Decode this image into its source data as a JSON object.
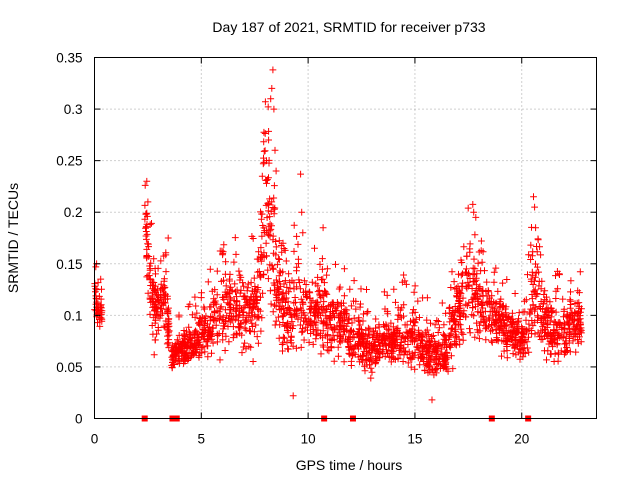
{
  "chart_data": {
    "type": "scatter",
    "title": "Day 187 of 2021, SRMTID for receiver p733",
    "xlabel": "GPS time / hours",
    "ylabel": "SRMTID / TECUs",
    "xlim": [
      0,
      23.5
    ],
    "ylim": [
      0,
      0.35
    ],
    "x_ticks": [
      0,
      5,
      10,
      15,
      20
    ],
    "x_tick_labels": [
      "0",
      "5",
      "10",
      "15",
      "20"
    ],
    "y_ticks": [
      0,
      0.05,
      0.1,
      0.15,
      0.2,
      0.25,
      0.3,
      0.35
    ],
    "y_tick_labels": [
      "0",
      "0.05",
      "0.1",
      "0.15",
      "0.2",
      "0.25",
      "0.3",
      "0.35"
    ],
    "grid": true,
    "marker": "+",
    "marker_color": "#ff0000",
    "baseline_markers_at_zero_hours": [
      2.35,
      3.65,
      3.85,
      10.75,
      12.1,
      18.6,
      20.3
    ],
    "envelope": [
      [
        0.0,
        0.09,
        0.14
      ],
      [
        0.25,
        0.09,
        0.12
      ],
      [
        2.4,
        0.15,
        0.23
      ],
      [
        2.6,
        0.1,
        0.17
      ],
      [
        2.8,
        0.07,
        0.15
      ],
      [
        3.0,
        0.08,
        0.13
      ],
      [
        3.3,
        0.08,
        0.17
      ],
      [
        3.6,
        0.05,
        0.07
      ],
      [
        4.0,
        0.05,
        0.08
      ],
      [
        4.5,
        0.05,
        0.09
      ],
      [
        5.0,
        0.06,
        0.1
      ],
      [
        5.5,
        0.06,
        0.12
      ],
      [
        6.0,
        0.06,
        0.14
      ],
      [
        6.5,
        0.07,
        0.15
      ],
      [
        7.0,
        0.06,
        0.14
      ],
      [
        7.5,
        0.07,
        0.15
      ],
      [
        7.8,
        0.08,
        0.2
      ],
      [
        8.1,
        0.12,
        0.33
      ],
      [
        8.4,
        0.09,
        0.2
      ],
      [
        8.8,
        0.06,
        0.15
      ],
      [
        9.2,
        0.07,
        0.14
      ],
      [
        9.5,
        0.06,
        0.2
      ],
      [
        9.8,
        0.07,
        0.14
      ],
      [
        10.2,
        0.07,
        0.13
      ],
      [
        10.6,
        0.07,
        0.14
      ],
      [
        11.0,
        0.06,
        0.13
      ],
      [
        11.5,
        0.06,
        0.12
      ],
      [
        12.0,
        0.05,
        0.11
      ],
      [
        12.5,
        0.05,
        0.1
      ],
      [
        13.0,
        0.04,
        0.09
      ],
      [
        13.5,
        0.05,
        0.1
      ],
      [
        14.0,
        0.05,
        0.1
      ],
      [
        14.5,
        0.05,
        0.11
      ],
      [
        15.0,
        0.05,
        0.1
      ],
      [
        15.5,
        0.04,
        0.09
      ],
      [
        16.0,
        0.04,
        0.08
      ],
      [
        16.5,
        0.04,
        0.09
      ],
      [
        17.0,
        0.06,
        0.14
      ],
      [
        17.3,
        0.08,
        0.16
      ],
      [
        17.6,
        0.08,
        0.19
      ],
      [
        17.9,
        0.08,
        0.16
      ],
      [
        18.3,
        0.07,
        0.14
      ],
      [
        18.7,
        0.07,
        0.13
      ],
      [
        19.2,
        0.06,
        0.12
      ],
      [
        19.7,
        0.06,
        0.1
      ],
      [
        20.2,
        0.06,
        0.1
      ],
      [
        20.5,
        0.07,
        0.18
      ],
      [
        20.8,
        0.07,
        0.14
      ],
      [
        21.3,
        0.06,
        0.12
      ],
      [
        21.8,
        0.05,
        0.11
      ],
      [
        22.3,
        0.06,
        0.12
      ],
      [
        22.8,
        0.07,
        0.12
      ]
    ],
    "notable_points": [
      [
        0.1,
        0.15
      ],
      [
        2.45,
        0.23
      ],
      [
        2.5,
        0.21
      ],
      [
        3.45,
        0.175
      ],
      [
        8.05,
        0.25
      ],
      [
        8.15,
        0.27
      ],
      [
        8.25,
        0.31
      ],
      [
        8.3,
        0.32
      ],
      [
        8.35,
        0.338
      ],
      [
        8.4,
        0.3
      ],
      [
        8.45,
        0.26
      ],
      [
        8.5,
        0.24
      ],
      [
        9.65,
        0.237
      ],
      [
        9.7,
        0.2
      ],
      [
        9.75,
        0.18
      ],
      [
        10.3,
        0.165
      ],
      [
        10.7,
        0.185
      ],
      [
        14.6,
        0.13
      ],
      [
        17.75,
        0.2
      ],
      [
        17.85,
        0.195
      ],
      [
        20.55,
        0.215
      ],
      [
        20.6,
        0.205
      ],
      [
        20.65,
        0.185
      ],
      [
        15.8,
        0.018
      ],
      [
        9.3,
        0.022
      ]
    ]
  }
}
